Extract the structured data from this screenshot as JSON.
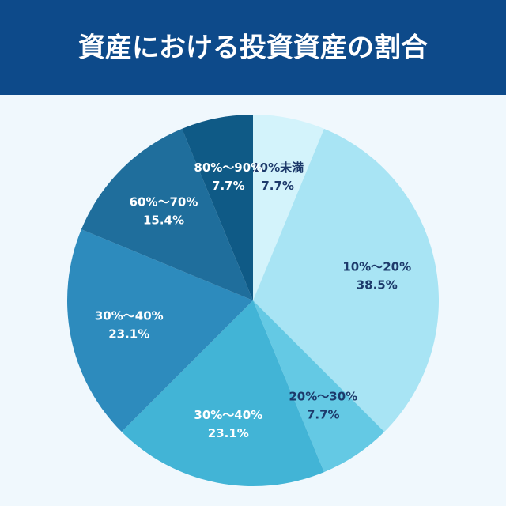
{
  "chart_data": {
    "type": "pie",
    "title": "資産における投資資産の割合",
    "categories": [
      "10%未満",
      "10%〜20%",
      "20%〜30%",
      "30%〜40%",
      "30%〜40%",
      "60%〜70%",
      "80%〜90%"
    ],
    "values": [
      7.7,
      38.5,
      7.7,
      23.1,
      23.1,
      15.4,
      7.7
    ],
    "value_labels": [
      "7.7%",
      "38.5%",
      "7.7%",
      "23.1%",
      "23.1%",
      "15.4%",
      "7.7%"
    ],
    "colors": [
      "#d3f3fb",
      "#a8e4f4",
      "#64c9e4",
      "#42b4d6",
      "#2d8bbd",
      "#1f6e9c",
      "#0f5a86"
    ]
  }
}
